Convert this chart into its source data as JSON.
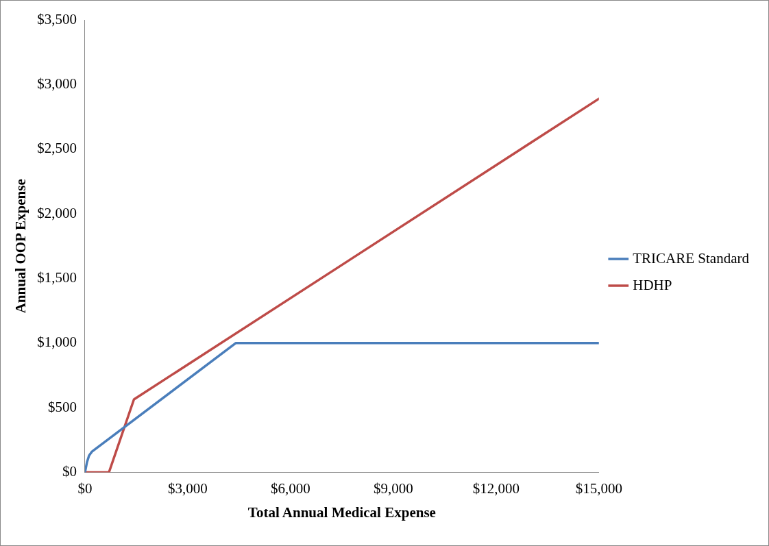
{
  "chart_data": {
    "type": "line",
    "xlabel": "Total Annual Medical Expense",
    "ylabel": "Annual OOP Expense",
    "xlim": [
      0,
      15000
    ],
    "ylim": [
      0,
      3500
    ],
    "xticks": [
      {
        "value": 0,
        "label": "$0"
      },
      {
        "value": 3000,
        "label": "$3,000"
      },
      {
        "value": 6000,
        "label": "$6,000"
      },
      {
        "value": 9000,
        "label": "$9,000"
      },
      {
        "value": 12000,
        "label": "$12,000"
      },
      {
        "value": 15000,
        "label": "$15,000"
      }
    ],
    "yticks": [
      {
        "value": 0,
        "label": "$0"
      },
      {
        "value": 500,
        "label": "$500"
      },
      {
        "value": 1000,
        "label": "$1,000"
      },
      {
        "value": 1500,
        "label": "$1,500"
      },
      {
        "value": 2000,
        "label": "$2,000"
      },
      {
        "value": 2500,
        "label": "$2,500"
      },
      {
        "value": 3000,
        "label": "$3,000"
      },
      {
        "value": 3500,
        "label": "$3,500"
      }
    ],
    "grid": false,
    "legend": "right",
    "marker": "none",
    "line_style": "solid",
    "series": [
      {
        "name": "TRICARE Standard",
        "color": "#4a7ebb",
        "x": [
          0,
          60,
          120,
          200,
          4400,
          15000
        ],
        "values": [
          0,
          80,
          130,
          160,
          1000,
          1000
        ]
      },
      {
        "name": "HDHP",
        "color": "#be4b48",
        "x": [
          0,
          700,
          1430,
          15000
        ],
        "values": [
          0,
          0,
          565,
          2890
        ]
      }
    ]
  }
}
